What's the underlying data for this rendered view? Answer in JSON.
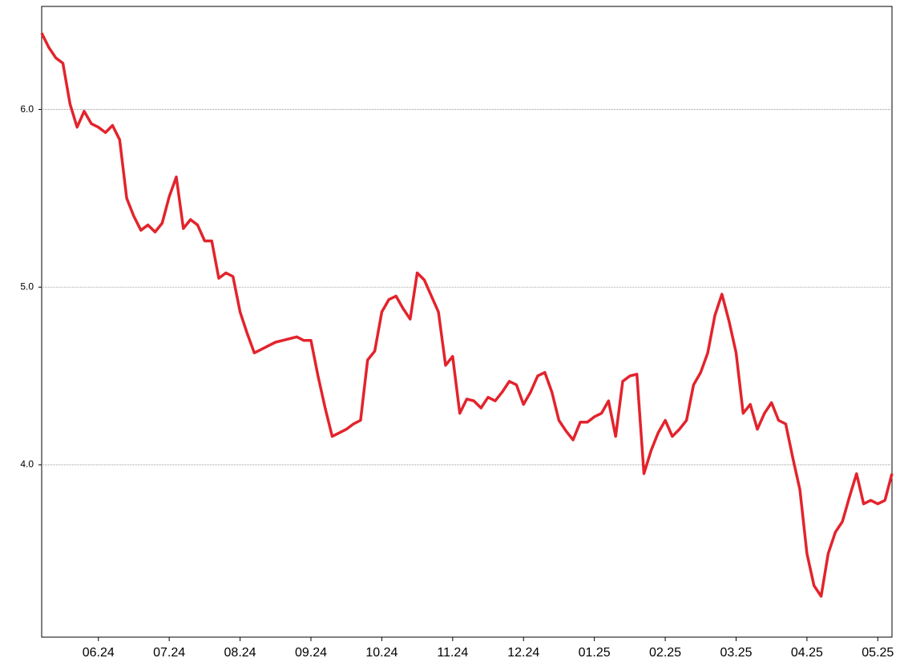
{
  "chart_data": {
    "type": "line",
    "categories": [
      null,
      null,
      null,
      null,
      null,
      null,
      null,
      null,
      "06.24",
      null,
      null,
      null,
      null,
      null,
      null,
      null,
      null,
      null,
      "07.24",
      null,
      null,
      null,
      null,
      null,
      null,
      null,
      null,
      null,
      "08.24",
      null,
      null,
      null,
      null,
      null,
      null,
      null,
      null,
      null,
      "09.24",
      null,
      null,
      null,
      null,
      null,
      null,
      null,
      null,
      null,
      "10.24",
      null,
      null,
      null,
      null,
      null,
      null,
      null,
      null,
      null,
      "11.24",
      null,
      null,
      null,
      null,
      null,
      null,
      null,
      null,
      null,
      "12.24",
      null,
      null,
      null,
      null,
      null,
      null,
      null,
      null,
      null,
      "01.25",
      null,
      null,
      null,
      null,
      null,
      null,
      null,
      null,
      null,
      "02.25",
      null,
      null,
      null,
      null,
      null,
      null,
      null,
      null,
      null,
      "03.25",
      null,
      null,
      null,
      null,
      null,
      null,
      null,
      null,
      null,
      "04.25",
      null,
      null,
      null,
      null,
      null,
      null,
      null,
      null,
      null,
      "05.25",
      null,
      null
    ],
    "values": [
      6.43,
      6.35,
      6.29,
      6.26,
      6.03,
      5.9,
      5.99,
      5.92,
      5.9,
      5.87,
      5.91,
      5.83,
      5.5,
      5.4,
      5.32,
      5.35,
      5.31,
      5.36,
      5.51,
      5.62,
      5.33,
      5.38,
      5.35,
      5.26,
      5.26,
      5.05,
      5.08,
      5.06,
      4.86,
      4.74,
      4.63,
      4.65,
      4.67,
      4.69,
      4.7,
      4.71,
      4.72,
      4.7,
      4.7,
      4.5,
      4.32,
      4.16,
      4.18,
      4.2,
      4.23,
      4.25,
      4.59,
      4.64,
      4.86,
      4.93,
      4.95,
      4.88,
      4.82,
      5.08,
      5.04,
      4.95,
      4.86,
      4.56,
      4.61,
      4.29,
      4.37,
      4.36,
      4.32,
      4.38,
      4.36,
      4.41,
      4.47,
      4.45,
      4.34,
      4.41,
      4.5,
      4.52,
      4.41,
      4.25,
      4.19,
      4.14,
      4.24,
      4.24,
      4.27,
      4.29,
      4.36,
      4.16,
      4.47,
      4.5,
      4.51,
      3.95,
      4.08,
      4.18,
      4.25,
      4.16,
      4.2,
      4.25,
      4.45,
      4.52,
      4.63,
      4.84,
      4.96,
      4.81,
      4.63,
      4.29,
      4.34,
      4.2,
      4.29,
      4.35,
      4.25,
      4.23,
      4.04,
      3.86,
      3.5,
      3.32,
      3.26,
      3.5,
      3.62,
      3.68,
      3.82,
      3.95,
      3.78,
      3.8,
      3.78,
      3.8,
      3.95
    ],
    "color": "#e3232c",
    "ylim": [
      3.03,
      6.58
    ],
    "yticks": [
      {
        "value": 4,
        "label": "4.0"
      },
      {
        "value": 5,
        "label": "5.0"
      },
      {
        "value": 6,
        "label": "6.0"
      }
    ],
    "grid": true
  }
}
